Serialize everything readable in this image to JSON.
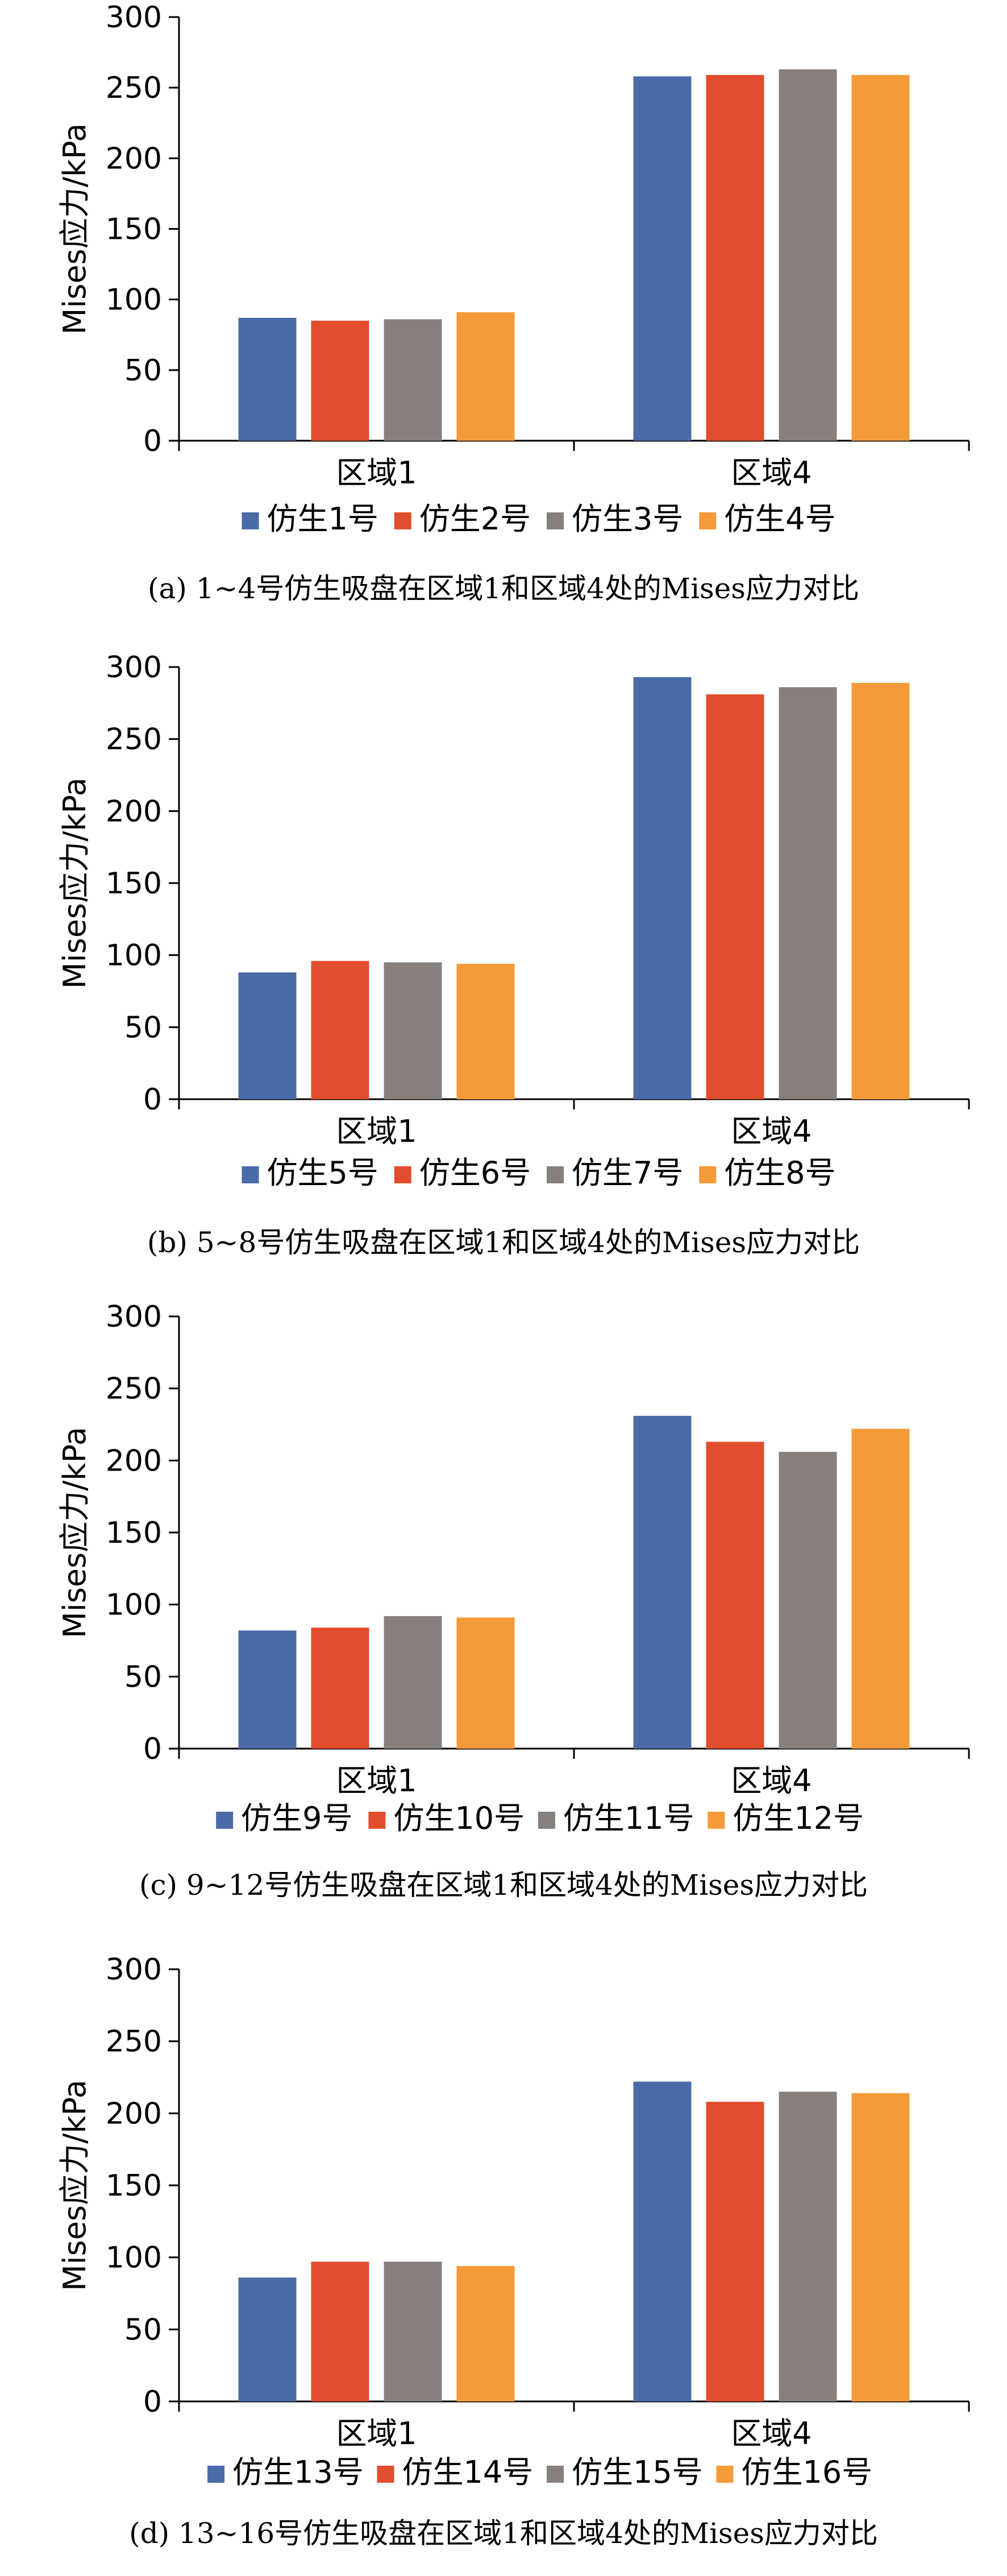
{
  "colors": {
    "series": [
      "#4a6aa8",
      "#e04e2e",
      "#877f7c",
      "#f59a38"
    ],
    "axis": "#000000"
  },
  "chart_data": [
    {
      "type": "bar",
      "caption": "(a) 1~4号仿生吸盘在区域1和区域4处的Mises应力对比",
      "ylabel": "Mises应力/kPa",
      "ylim": [
        0,
        300
      ],
      "yticks": [
        "0",
        "50",
        "100",
        "150",
        "200",
        "250",
        "300"
      ],
      "categories": [
        "区域1",
        "区域4"
      ],
      "legend_position": "bottom",
      "series": [
        {
          "name": "仿生1号",
          "values": [
            87,
            258
          ]
        },
        {
          "name": "仿生2号",
          "values": [
            85,
            259
          ]
        },
        {
          "name": "仿生3号",
          "values": [
            86,
            263
          ]
        },
        {
          "name": "仿生4号",
          "values": [
            91,
            259
          ]
        }
      ]
    },
    {
      "type": "bar",
      "caption": "(b) 5~8号仿生吸盘在区域1和区域4处的Mises应力对比",
      "ylabel": "Mises应力/kPa",
      "ylim": [
        0,
        300
      ],
      "yticks": [
        "0",
        "50",
        "100",
        "150",
        "200",
        "250",
        "300"
      ],
      "categories": [
        "区域1",
        "区域4"
      ],
      "legend_position": "bottom",
      "series": [
        {
          "name": "仿生5号",
          "values": [
            88,
            293
          ]
        },
        {
          "name": "仿生6号",
          "values": [
            96,
            281
          ]
        },
        {
          "name": "仿生7号",
          "values": [
            95,
            286
          ]
        },
        {
          "name": "仿生8号",
          "values": [
            94,
            289
          ]
        }
      ]
    },
    {
      "type": "bar",
      "caption": "(c) 9~12号仿生吸盘在区域1和区域4处的Mises应力对比",
      "ylabel": "Mises应力/kPa",
      "ylim": [
        0,
        300
      ],
      "yticks": [
        "0",
        "50",
        "100",
        "150",
        "200",
        "250",
        "300"
      ],
      "categories": [
        "区域1",
        "区域4"
      ],
      "legend_position": "bottom",
      "series": [
        {
          "name": "仿生9号",
          "values": [
            82,
            231
          ]
        },
        {
          "name": "仿生10号",
          "values": [
            84,
            213
          ]
        },
        {
          "name": "仿生11号",
          "values": [
            92,
            206
          ]
        },
        {
          "name": "仿生12号",
          "values": [
            91,
            222
          ]
        }
      ]
    },
    {
      "type": "bar",
      "caption": "(d) 13~16号仿生吸盘在区域1和区域4处的Mises应力对比",
      "ylabel": "Mises应力/kPa",
      "ylim": [
        0,
        300
      ],
      "yticks": [
        "0",
        "50",
        "100",
        "150",
        "200",
        "250",
        "300"
      ],
      "categories": [
        "区域1",
        "区域4"
      ],
      "legend_position": "bottom",
      "series": [
        {
          "name": "仿生13号",
          "values": [
            86,
            222
          ]
        },
        {
          "name": "仿生14号",
          "values": [
            97,
            208
          ]
        },
        {
          "name": "仿生15号",
          "values": [
            97,
            215
          ]
        },
        {
          "name": "仿生16号",
          "values": [
            94,
            214
          ]
        }
      ]
    }
  ]
}
